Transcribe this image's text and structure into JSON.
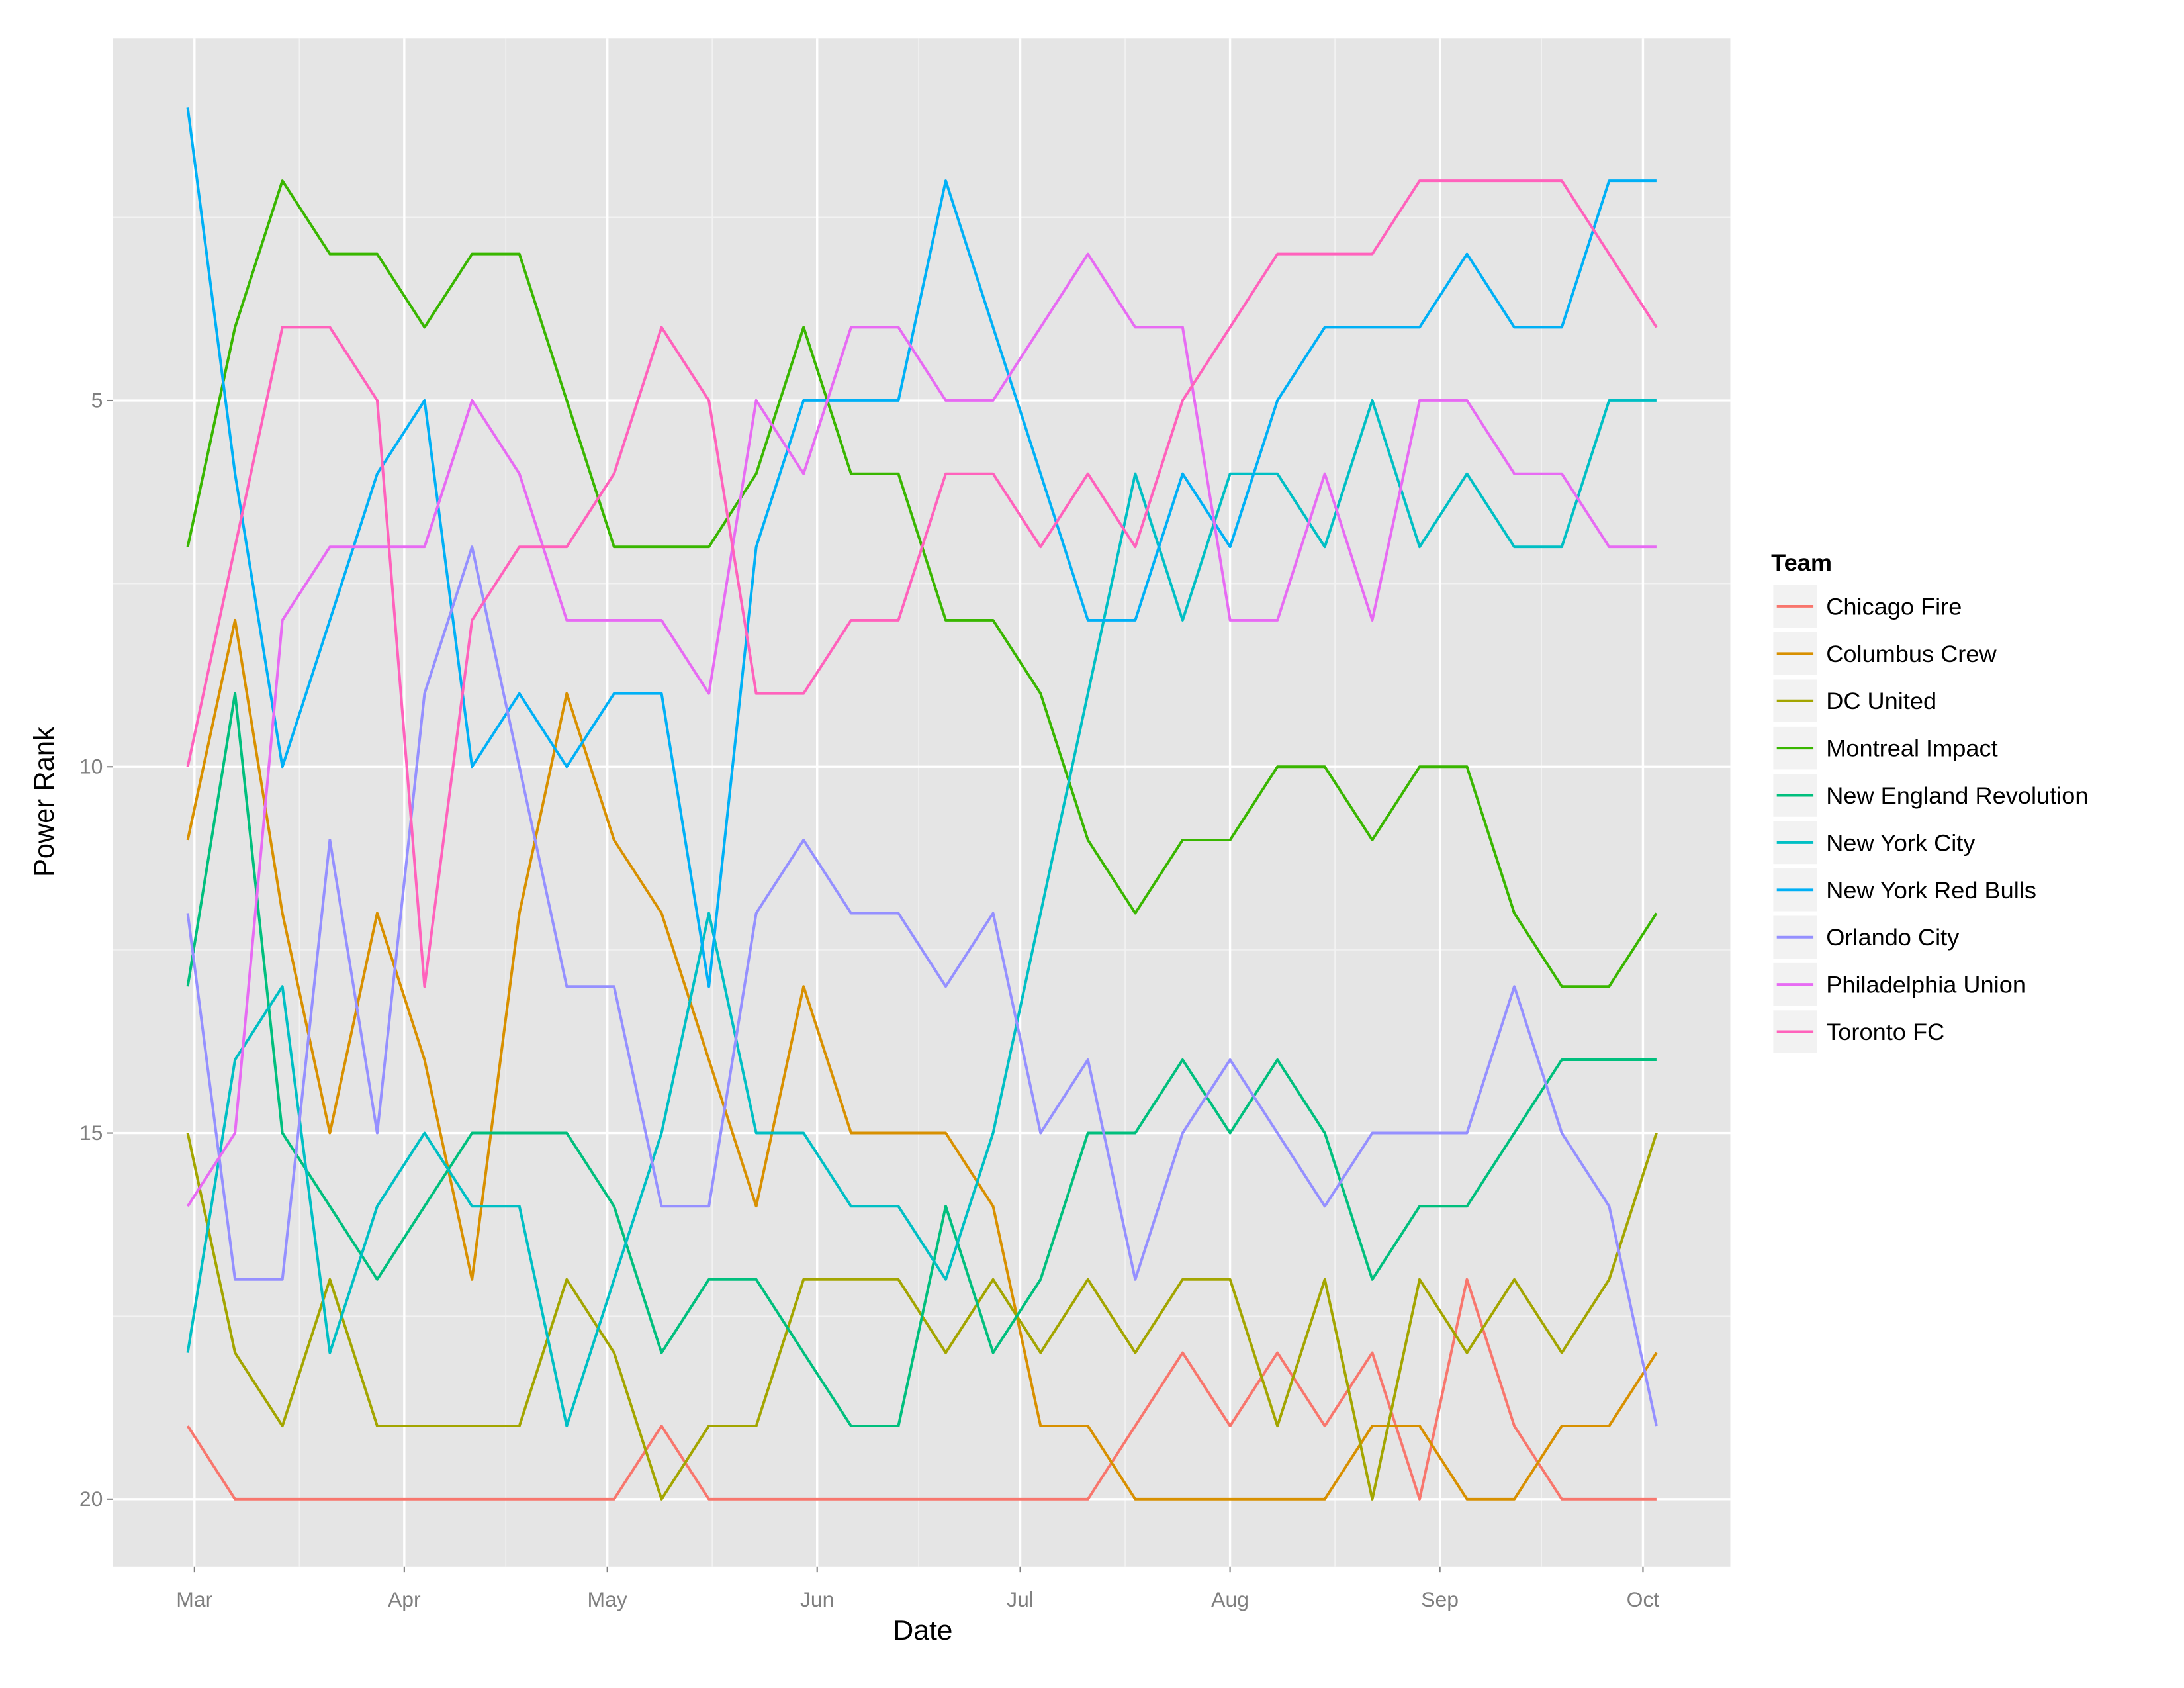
{
  "chart_data": {
    "type": "line",
    "title": "",
    "xlabel": "Date",
    "ylabel": "Power Rank",
    "x_ticks": [
      {
        "label": "Mar",
        "date": "2015-03-01"
      },
      {
        "label": "Apr",
        "date": "2015-04-01"
      },
      {
        "label": "May",
        "date": "2015-05-01"
      },
      {
        "label": "Jun",
        "date": "2015-06-01"
      },
      {
        "label": "Jul",
        "date": "2015-07-01"
      },
      {
        "label": "Aug",
        "date": "2015-08-01"
      },
      {
        "label": "Sep",
        "date": "2015-09-01"
      },
      {
        "label": "Oct",
        "date": "2015-10-01"
      }
    ],
    "y_ticks": [
      5,
      10,
      15,
      20
    ],
    "y_reversed": true,
    "ylim": [
      0.05,
      20.9
    ],
    "grid": true,
    "legend": {
      "title": "Team",
      "position": "right"
    },
    "x": [
      "2015-02-28",
      "2015-03-07",
      "2015-03-14",
      "2015-03-21",
      "2015-03-28",
      "2015-04-04",
      "2015-04-11",
      "2015-04-18",
      "2015-04-25",
      "2015-05-02",
      "2015-05-09",
      "2015-05-16",
      "2015-05-23",
      "2015-05-30",
      "2015-06-06",
      "2015-06-13",
      "2015-06-20",
      "2015-06-27",
      "2015-07-04",
      "2015-07-11",
      "2015-07-18",
      "2015-07-25",
      "2015-08-01",
      "2015-08-08",
      "2015-08-15",
      "2015-08-22",
      "2015-08-29",
      "2015-09-05",
      "2015-09-12",
      "2015-09-19",
      "2015-09-26",
      "2015-10-03"
    ],
    "series": [
      {
        "name": "Chicago Fire",
        "color": "#F8766D",
        "values": [
          19,
          20,
          20,
          20,
          20,
          20,
          20,
          20,
          20,
          20,
          19,
          20,
          20,
          20,
          20,
          20,
          20,
          20,
          20,
          20,
          19,
          18,
          19,
          18,
          19,
          18,
          20,
          17,
          19,
          20,
          20,
          20
        ]
      },
      {
        "name": "Columbus Crew",
        "color": "#D89000",
        "values": [
          11,
          8,
          12,
          15,
          12,
          14,
          17,
          12,
          9,
          11,
          12,
          14,
          16,
          13,
          15,
          15,
          15,
          16,
          19,
          19,
          20,
          20,
          20,
          20,
          20,
          19,
          19,
          20,
          20,
          19,
          19,
          18
        ]
      },
      {
        "name": "DC United",
        "color": "#A3A500",
        "values": [
          15,
          18,
          19,
          17,
          19,
          19,
          19,
          19,
          17,
          18,
          20,
          19,
          19,
          17,
          17,
          17,
          18,
          17,
          18,
          17,
          18,
          17,
          17,
          19,
          17,
          20,
          17,
          18,
          17,
          18,
          17,
          15
        ]
      },
      {
        "name": "Montreal Impact",
        "color": "#39B600",
        "values": [
          7,
          4,
          2,
          3,
          3,
          4,
          3,
          3,
          5,
          7,
          7,
          7,
          6,
          4,
          6,
          6,
          8,
          8,
          9,
          11,
          12,
          11,
          11,
          10,
          10,
          11,
          10,
          10,
          12,
          13,
          13,
          12
        ]
      },
      {
        "name": "New England Revolution",
        "color": "#00BF7D",
        "values": [
          13,
          9,
          15,
          16,
          17,
          16,
          15,
          15,
          15,
          16,
          18,
          17,
          17,
          18,
          19,
          19,
          16,
          18,
          17,
          15,
          15,
          14,
          15,
          14,
          15,
          17,
          16,
          16,
          15,
          14,
          14,
          14
        ]
      },
      {
        "name": "New York City",
        "color": "#00BFC4",
        "values": [
          18,
          14,
          13,
          18,
          16,
          15,
          16,
          16,
          19,
          17,
          15,
          12,
          15,
          15,
          16,
          16,
          17,
          15,
          12,
          9,
          6,
          8,
          6,
          6,
          7,
          5,
          7,
          6,
          7,
          7,
          5,
          5
        ]
      },
      {
        "name": "New York Red Bulls",
        "color": "#00B0F6",
        "values": [
          1,
          6,
          10,
          8,
          6,
          5,
          10,
          9,
          10,
          9,
          9,
          13,
          7,
          5,
          5,
          5,
          2,
          4,
          6,
          8,
          8,
          6,
          7,
          5,
          4,
          4,
          4,
          3,
          4,
          4,
          2,
          2
        ]
      },
      {
        "name": "Orlando City",
        "color": "#9590FF",
        "values": [
          12,
          17,
          17,
          11,
          15,
          9,
          7,
          10,
          13,
          13,
          16,
          16,
          12,
          11,
          12,
          12,
          13,
          12,
          15,
          14,
          17,
          15,
          14,
          15,
          16,
          15,
          15,
          15,
          13,
          15,
          16,
          19
        ]
      },
      {
        "name": "Philadelphia Union",
        "color": "#E76BF3",
        "values": [
          16,
          15,
          8,
          7,
          7,
          7,
          5,
          6,
          8,
          8,
          8,
          9,
          5,
          6,
          4,
          4,
          5,
          5,
          4,
          3,
          4,
          4,
          8,
          8,
          6,
          8,
          5,
          5,
          6,
          6,
          7,
          7
        ]
      },
      {
        "name": "Toronto FC",
        "color": "#FF62BC",
        "values": [
          10,
          7,
          4,
          4,
          5,
          13,
          8,
          7,
          7,
          6,
          4,
          5,
          9,
          9,
          8,
          8,
          6,
          6,
          7,
          6,
          7,
          5,
          4,
          3,
          3,
          3,
          2,
          2,
          2,
          2,
          3,
          4
        ]
      }
    ]
  }
}
